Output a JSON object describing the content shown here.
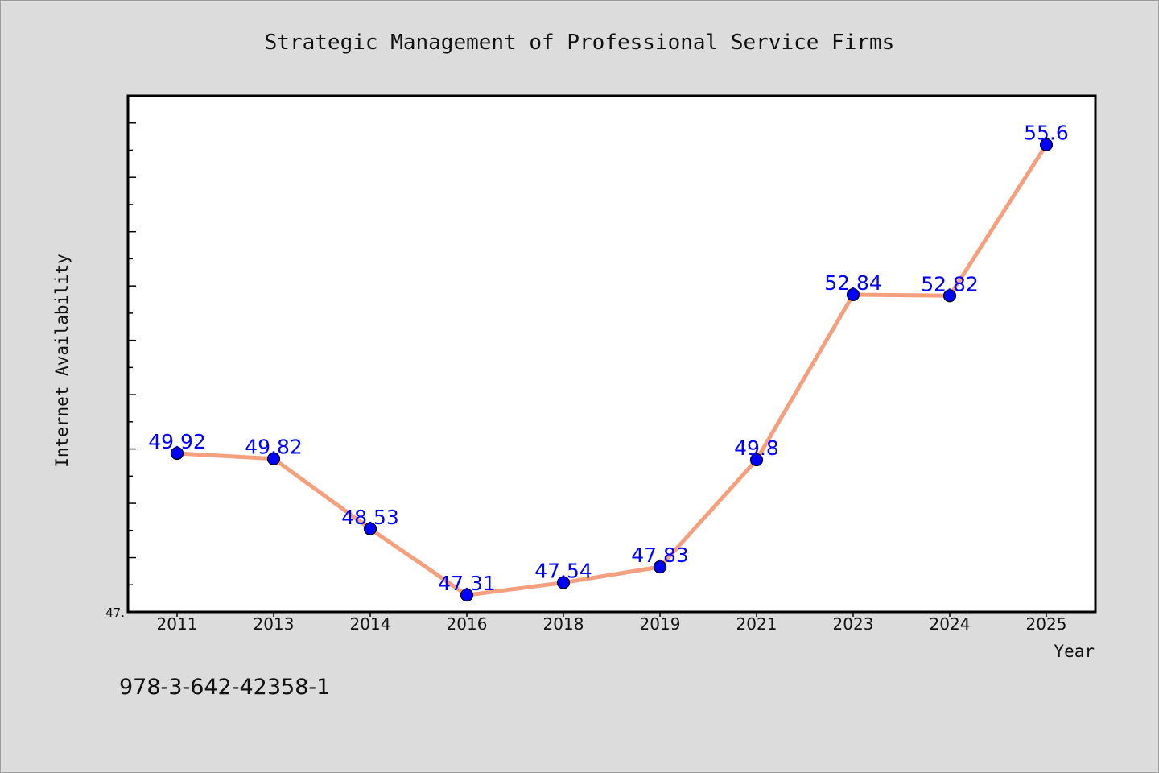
{
  "chart_data": {
    "type": "line",
    "title": "Strategic Management of Professional Service Firms",
    "xlabel": "Year",
    "ylabel": "Internet Availability",
    "categories": [
      "2011",
      "2013",
      "2014",
      "2016",
      "2018",
      "2019",
      "2021",
      "2023",
      "2024",
      "2025"
    ],
    "series": [
      {
        "values": [
          49.92,
          49.82,
          48.53,
          47.31,
          47.54,
          47.83,
          49.8,
          52.84,
          52.82,
          55.6
        ],
        "labels": [
          "49.92",
          "49.82",
          "48.53",
          "47.31",
          "47.54",
          "47.83",
          "49.8",
          "52.84",
          "52.82",
          "55.6"
        ],
        "color": "#f4a07e",
        "marker_color": "#0000ff"
      }
    ],
    "ylim": [
      47.0,
      56.5
    ],
    "y_min_label": "47.",
    "grid": false,
    "legend": "none",
    "plot_background": "#ffffff"
  },
  "footer": {
    "isbn": "978-3-642-42358-1"
  }
}
